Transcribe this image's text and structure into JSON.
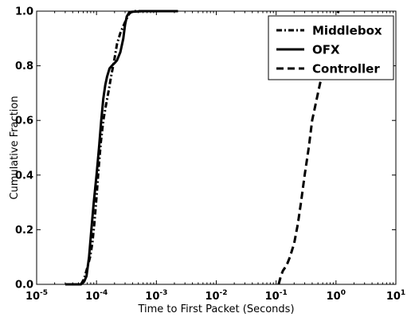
{
  "chart_data": {
    "type": "line",
    "title": "",
    "xlabel": "Time to First Packet (Seconds)",
    "ylabel": "Cumulative Fraction",
    "xscale": "log",
    "xlim": [
      1e-05,
      10
    ],
    "ylim": [
      0.0,
      1.0
    ],
    "x_ticks": [
      {
        "value": 1e-05,
        "base": "10",
        "exp": "-5"
      },
      {
        "value": 0.0001,
        "base": "10",
        "exp": "-4"
      },
      {
        "value": 0.001,
        "base": "10",
        "exp": "-3"
      },
      {
        "value": 0.01,
        "base": "10",
        "exp": "-2"
      },
      {
        "value": 0.1,
        "base": "10",
        "exp": "-1"
      },
      {
        "value": 1,
        "base": "10",
        "exp": "0"
      },
      {
        "value": 10,
        "base": "10",
        "exp": "1"
      }
    ],
    "y_ticks": [
      {
        "value": 0.0,
        "label": "0.0"
      },
      {
        "value": 0.2,
        "label": "0.2"
      },
      {
        "value": 0.4,
        "label": "0.4"
      },
      {
        "value": 0.6,
        "label": "0.6"
      },
      {
        "value": 0.8,
        "label": "0.8"
      },
      {
        "value": 1.0,
        "label": "1.0"
      }
    ],
    "grid": false,
    "legend_position": "top-right",
    "series": [
      {
        "name": "Middlebox",
        "style": "dashdot",
        "color": "#000000",
        "x": [
          5.5e-05,
          6.2e-05,
          7e-05,
          7.8e-05,
          8.5e-05,
          9.2e-05,
          0.0001,
          0.000108,
          0.000118,
          0.00013,
          0.000145,
          0.00016,
          0.000175,
          0.00019,
          0.000205,
          0.00022,
          0.00025,
          0.0003,
          0.00035,
          0.0004,
          0.0006,
          0.001
        ],
        "y": [
          0.0,
          0.02,
          0.06,
          0.1,
          0.15,
          0.22,
          0.32,
          0.42,
          0.52,
          0.6,
          0.66,
          0.71,
          0.76,
          0.8,
          0.84,
          0.88,
          0.92,
          0.96,
          0.99,
          1.0,
          1.0,
          1.0
        ]
      },
      {
        "name": "OFX",
        "style": "solid",
        "color": "#000000",
        "x": [
          3e-05,
          5.5e-05,
          6.2e-05,
          6.8e-05,
          7.5e-05,
          8.2e-05,
          9e-05,
          0.0001,
          0.00011,
          0.00012,
          0.00013,
          0.00014,
          0.00015,
          0.000165,
          0.00018,
          0.0002,
          0.00022,
          0.00025,
          0.00028,
          0.0003,
          0.00032,
          0.00035,
          0.0004,
          0.0006,
          0.001,
          0.0023
        ],
        "y": [
          0.0,
          0.0,
          0.01,
          0.03,
          0.1,
          0.2,
          0.3,
          0.4,
          0.5,
          0.6,
          0.68,
          0.73,
          0.76,
          0.79,
          0.8,
          0.81,
          0.82,
          0.85,
          0.9,
          0.95,
          0.98,
          0.995,
          0.998,
          1.0,
          1.0,
          1.0
        ]
      },
      {
        "name": "Controller",
        "style": "dashed",
        "color": "#000000",
        "x": [
          0.11,
          0.12,
          0.13,
          0.15,
          0.17,
          0.2,
          0.23,
          0.26,
          0.3,
          0.35,
          0.4,
          0.5,
          0.6,
          0.7,
          0.8,
          0.9,
          1.0,
          1.1
        ],
        "y": [
          0.0,
          0.03,
          0.05,
          0.07,
          0.1,
          0.15,
          0.22,
          0.3,
          0.4,
          0.5,
          0.6,
          0.7,
          0.78,
          0.85,
          0.9,
          0.94,
          0.97,
          1.0
        ]
      }
    ]
  }
}
